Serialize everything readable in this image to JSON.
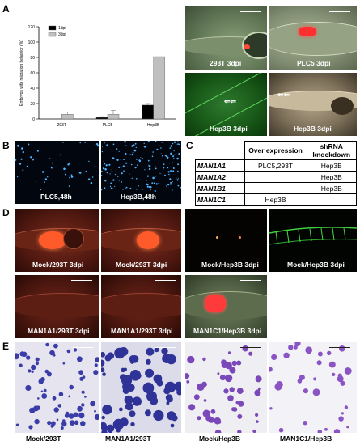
{
  "panels": {
    "A": "A",
    "B": "B",
    "C": "C",
    "D": "D",
    "E": "E"
  },
  "chart_data": {
    "type": "bar",
    "categories": [
      "293T",
      "PLC5",
      "Hep3B"
    ],
    "series": [
      {
        "name": "1dpi",
        "values": [
          0,
          2,
          18
        ],
        "errors": [
          0,
          1,
          2
        ],
        "color": "#000000"
      },
      {
        "name": "3dpi",
        "values": [
          6,
          6,
          81
        ],
        "errors": [
          3,
          5,
          27
        ],
        "color": "#bfbfbf"
      }
    ],
    "ylabel": "Embryos with migration behavior (%)",
    "ylim": [
      0,
      120
    ],
    "yticks": [
      0,
      20,
      40,
      60,
      80,
      100,
      120
    ],
    "legend_position": "top-left"
  },
  "panel_a_images": [
    {
      "caption": "293T 3dpi"
    },
    {
      "caption": "PLC5 3dpi"
    },
    {
      "caption": "Hep3B 3dpi"
    },
    {
      "caption": "Hep3B 3dpi"
    }
  ],
  "panel_b_images": [
    {
      "caption": "PLC5,48h"
    },
    {
      "caption": "Hep3B,48h"
    }
  ],
  "table": {
    "headers": [
      "",
      "Over expression",
      "shRNA knockdown"
    ],
    "rows": [
      {
        "gene": "MAN1A1",
        "over": "PLC5,293T",
        "kd": "Hep3B"
      },
      {
        "gene": "MAN1A2",
        "over": "",
        "kd": "Hep3B"
      },
      {
        "gene": "MAN1B1",
        "over": "",
        "kd": "Hep3B"
      },
      {
        "gene": "MAN1C1",
        "over": "Hep3B",
        "kd": ""
      }
    ]
  },
  "panel_d_images": [
    {
      "caption": "Mock/293T 3dpi"
    },
    {
      "caption": "Mock/293T 3dpi"
    },
    {
      "caption": "Mock/Hep3B 3dpi"
    },
    {
      "caption": "Mock/Hep3B 3dpi"
    },
    {
      "caption": "MAN1A1/293T 3dpi"
    },
    {
      "caption": "MAN1A1/293T 3dpi"
    },
    {
      "caption": "MAN1C1/Hep3B 3dpi"
    }
  ],
  "panel_e_images": [
    {
      "caption": "Mock/293T"
    },
    {
      "caption": "MAN1A1/293T"
    },
    {
      "caption": "Mock/Hep3B"
    },
    {
      "caption": "MAN1C1/Hep3B"
    }
  ]
}
